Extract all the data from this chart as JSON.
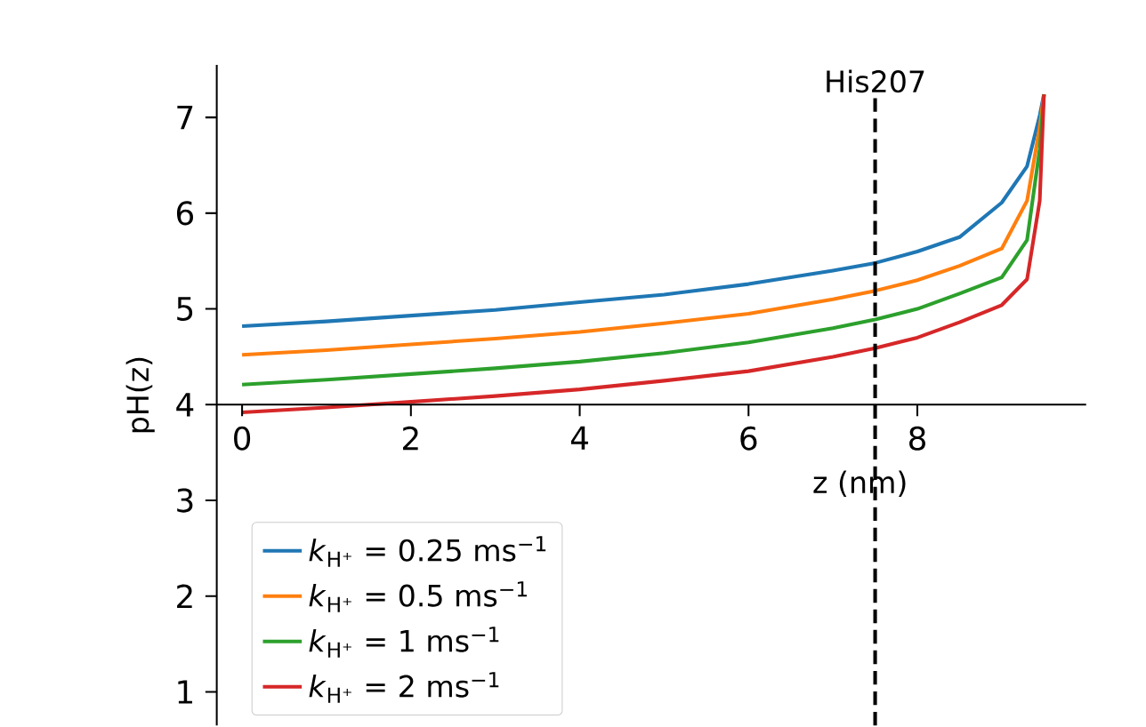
{
  "chart_data": {
    "type": "line",
    "xlabel": "z (nm)",
    "ylabel": "pH(z)",
    "xlim": [
      -0.3,
      10
    ],
    "ylim": [
      0.65,
      7.55
    ],
    "xticks": [
      0,
      2,
      4,
      6,
      8
    ],
    "yticks": [
      1,
      2,
      3,
      4,
      5,
      6,
      7
    ],
    "x": [
      0,
      1,
      2,
      3,
      4,
      5,
      6,
      7,
      7.5,
      8,
      8.5,
      9,
      9.3,
      9.45,
      9.5
    ],
    "series": [
      {
        "name": "*k*$_{H⁺}$ = 0.25 ms$^{−1}$",
        "color": "#1f77b4",
        "values": [
          4.82,
          4.87,
          4.93,
          4.99,
          5.07,
          5.15,
          5.26,
          5.4,
          5.48,
          5.6,
          5.75,
          6.11,
          6.49,
          7.02,
          7.24
        ]
      },
      {
        "name": "*k*$_{H⁺}$ = 0.5 ms$^{−1}$",
        "color": "#ff7f0e",
        "values": [
          4.52,
          4.57,
          4.63,
          4.69,
          4.76,
          4.85,
          4.95,
          5.1,
          5.19,
          5.3,
          5.45,
          5.63,
          6.13,
          6.9,
          7.24
        ]
      },
      {
        "name": "*k*$_{H⁺}$ = 1 ms$^{−1}$",
        "color": "#2ca02c",
        "values": [
          4.21,
          4.26,
          4.32,
          4.38,
          4.45,
          4.54,
          4.65,
          4.8,
          4.89,
          5.0,
          5.16,
          5.33,
          5.72,
          6.67,
          7.24
        ]
      },
      {
        "name": "*k*$_{H⁺}$ = 2 ms$^{−1}$",
        "color": "#d62728",
        "values": [
          3.92,
          3.97,
          4.03,
          4.09,
          4.16,
          4.25,
          4.35,
          4.5,
          4.59,
          4.7,
          4.86,
          5.04,
          5.31,
          6.13,
          7.24
        ]
      }
    ],
    "ref_lines": [
      {
        "axis": "x",
        "value": 7.5,
        "label": "His207",
        "color": "#000000",
        "line_style": "dashed"
      }
    ],
    "legend": "bottom left"
  }
}
